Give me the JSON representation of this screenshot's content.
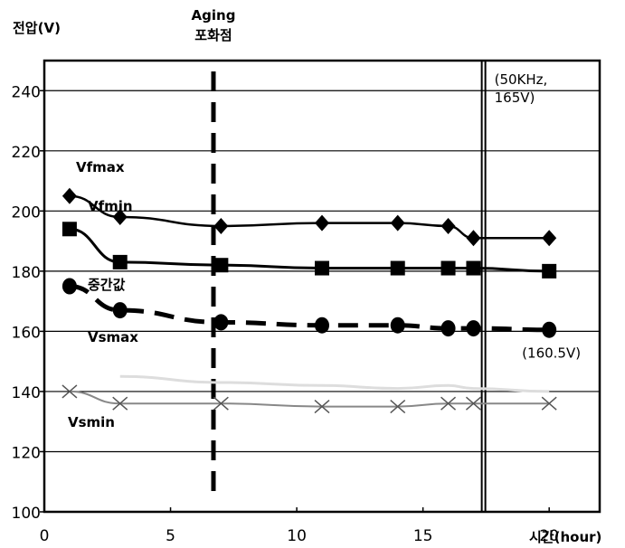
{
  "chart_data": {
    "type": "line",
    "ylabel": "전압(V)",
    "xlabel": "시간(hour)",
    "xlim": [
      0,
      22
    ],
    "ylim": [
      100,
      250
    ],
    "x_ticks": [
      "0",
      "5",
      "10",
      "15",
      "20"
    ],
    "y_ticks": [
      "100",
      "120",
      "140",
      "160",
      "180",
      "200",
      "220",
      "240"
    ],
    "grid": "horizontal",
    "vlines": [
      {
        "x": 6.7,
        "style": "dashed",
        "label_lines": [
          "Aging",
          "포화점"
        ]
      },
      {
        "x": 17.4,
        "style": "solid",
        "label_lines": [
          "(50KHz,",
          "165V)"
        ]
      }
    ],
    "annotations": [
      {
        "text": "(160.5V)",
        "x": 20,
        "y": 160.5
      }
    ],
    "series": [
      {
        "name": "Vfmax",
        "marker": "diamond",
        "line": "solid",
        "color": "#000000",
        "x": [
          1,
          3,
          7,
          11,
          14,
          16,
          17,
          20
        ],
        "y": [
          205,
          198,
          195,
          196,
          196,
          195,
          191,
          191
        ]
      },
      {
        "name": "Vfmin",
        "marker": "square",
        "line": "solid",
        "color": "#000000",
        "x": [
          1,
          3,
          7,
          11,
          14,
          16,
          17,
          20
        ],
        "y": [
          194,
          183,
          182,
          181,
          181,
          181,
          181,
          180
        ]
      },
      {
        "name": "중간값",
        "marker": "circle",
        "line": "dashed",
        "color": "#000000",
        "x": [
          1,
          3,
          7,
          11,
          14,
          16,
          17,
          20
        ],
        "y": [
          175,
          167,
          163,
          162,
          162,
          161,
          161,
          160.5
        ]
      },
      {
        "name": "Vsmax",
        "marker": "none",
        "line": "solid",
        "color": "#dddddd",
        "x": [
          3,
          7,
          11,
          14,
          16,
          17,
          20
        ],
        "y": [
          145,
          143,
          142,
          141,
          142,
          141,
          140
        ]
      },
      {
        "name": "Vsmin",
        "marker": "x",
        "line": "solid",
        "color": "#888888",
        "x": [
          1,
          3,
          7,
          11,
          14,
          16,
          17,
          20
        ],
        "y": [
          140,
          136,
          136,
          135,
          135,
          136,
          136,
          136
        ]
      }
    ]
  }
}
